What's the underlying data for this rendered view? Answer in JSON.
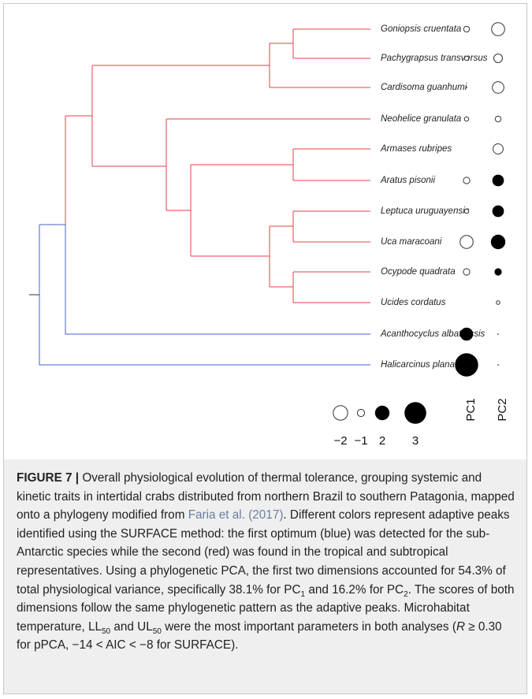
{
  "figure": {
    "species": [
      "Goniopsis cruentata",
      "Pachygrapsus transversus",
      "Cardisoma guanhumi",
      "Neohelice granulata",
      "Armases rubripes",
      "Aratus pisonii",
      "Leptuca uruguayensis",
      "Uca maracoani",
      "Ocypode quadrata",
      "Ucides cordatus",
      "Acanthocyclus albatrossis",
      "Halicarcinus planatus"
    ],
    "pc1": [
      -0.8,
      -0.6,
      0.05,
      -0.6,
      0,
      -0.9,
      -0.6,
      -1.8,
      -0.9,
      0,
      1.8,
      3.2
    ],
    "pc2": [
      -1.8,
      -1.2,
      -1.6,
      -0.8,
      -1.4,
      1.6,
      1.6,
      2.0,
      1.0,
      -0.5,
      0.1,
      0.1
    ],
    "axis_labels": [
      "PC1",
      "PC2"
    ],
    "legend": [
      {
        "value": -2,
        "label": "−2"
      },
      {
        "value": -1,
        "label": "−1"
      },
      2,
      3
    ]
  },
  "caption": {
    "label": "FIGURE 7 |",
    "parts": [
      " Overall physiological evolution of thermal tolerance, grouping systemic and kinetic traits in intertidal crabs distributed from northern Brazil to southern Patagonia, mapped onto a phylogeny modified from ",
      "Faria et al. (2017)",
      ". Different colors represent adaptive peaks identified using the SURFACE method: the first optimum (blue) was detected for the sub-Antarctic species while the second (red) was found in the tropical and subtropical representatives. Using a phylogenetic PCA, the first two dimensions accounted for 54.3% of total physiological variance, specifically 38.1% for PC",
      "1",
      " and 16.2% for PC",
      "2",
      ". The scores of both dimensions follow the same phylogenetic pattern as the adaptive peaks. Microhabitat temperature, LL",
      "50",
      " and UL",
      "50",
      " were the most important parameters in both analyses (",
      "R",
      " ≥ 0.30 for pPCA, −14 < AIC < −8 for SURFACE)."
    ]
  }
}
